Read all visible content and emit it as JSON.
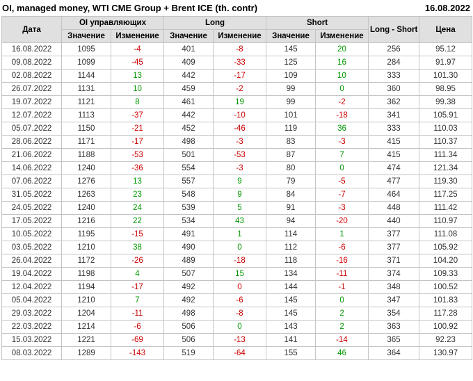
{
  "header": {
    "title": "OI, managed money, WTI CME Group + Brent ICE (th. contr)",
    "date": "16.08.2022"
  },
  "table": {
    "group_headers": {
      "date": "Дата",
      "oi": "OI управляющих",
      "long": "Long",
      "short": "Short",
      "long_short": "Long - Short",
      "price": "Цена"
    },
    "sub_headers": [
      "Значение",
      "Изменение",
      "Значение",
      "Изменение",
      "Значение",
      "Изменение"
    ]
  },
  "colors": {
    "positive": "#009900",
    "negative": "#cc0000",
    "header_bg": "#e0e0e0",
    "border": "#c4c4c4"
  },
  "chart_data": {
    "type": "table",
    "title": "OI, managed money, WTI CME Group + Brent ICE (th. contr)",
    "as_of_date": "16.08.2022",
    "columns": [
      "Дата",
      "OI управляющих Значение",
      "OI управляющих Изменение",
      "Long Значение",
      "Long Изменение",
      "Short Значение",
      "Short Изменение",
      "Long - Short",
      "Цена"
    ],
    "rows": [
      {
        "date": "16.08.2022",
        "oi_value": 1095,
        "oi_change": -4,
        "oi_change_color": "red",
        "long_value": 401,
        "long_change": -8,
        "long_change_color": "red",
        "short_value": 145,
        "short_change": 20,
        "short_change_color": "green",
        "long_short": 256,
        "price": "95.12"
      },
      {
        "date": "09.08.2022",
        "oi_value": 1099,
        "oi_change": -45,
        "oi_change_color": "red",
        "long_value": 409,
        "long_change": -33,
        "long_change_color": "red",
        "short_value": 125,
        "short_change": 16,
        "short_change_color": "green",
        "long_short": 284,
        "price": "91.97"
      },
      {
        "date": "02.08.2022",
        "oi_value": 1144,
        "oi_change": 13,
        "oi_change_color": "green",
        "long_value": 442,
        "long_change": -17,
        "long_change_color": "red",
        "short_value": 109,
        "short_change": 10,
        "short_change_color": "green",
        "long_short": 333,
        "price": "101.30"
      },
      {
        "date": "26.07.2022",
        "oi_value": 1131,
        "oi_change": 10,
        "oi_change_color": "green",
        "long_value": 459,
        "long_change": -2,
        "long_change_color": "red",
        "short_value": 99,
        "short_change": 0,
        "short_change_color": "green",
        "long_short": 360,
        "price": "98.95"
      },
      {
        "date": "19.07.2022",
        "oi_value": 1121,
        "oi_change": 8,
        "oi_change_color": "green",
        "long_value": 461,
        "long_change": 19,
        "long_change_color": "green",
        "short_value": 99,
        "short_change": -2,
        "short_change_color": "red",
        "long_short": 362,
        "price": "99.38"
      },
      {
        "date": "12.07.2022",
        "oi_value": 1113,
        "oi_change": -37,
        "oi_change_color": "red",
        "long_value": 442,
        "long_change": -10,
        "long_change_color": "red",
        "short_value": 101,
        "short_change": -18,
        "short_change_color": "red",
        "long_short": 341,
        "price": "105.91"
      },
      {
        "date": "05.07.2022",
        "oi_value": 1150,
        "oi_change": -21,
        "oi_change_color": "red",
        "long_value": 452,
        "long_change": -46,
        "long_change_color": "red",
        "short_value": 119,
        "short_change": 36,
        "short_change_color": "green",
        "long_short": 333,
        "price": "110.03"
      },
      {
        "date": "28.06.2022",
        "oi_value": 1171,
        "oi_change": -17,
        "oi_change_color": "red",
        "long_value": 498,
        "long_change": -3,
        "long_change_color": "red",
        "short_value": 83,
        "short_change": -3,
        "short_change_color": "red",
        "long_short": 415,
        "price": "110.37"
      },
      {
        "date": "21.06.2022",
        "oi_value": 1188,
        "oi_change": -53,
        "oi_change_color": "red",
        "long_value": 501,
        "long_change": -53,
        "long_change_color": "red",
        "short_value": 87,
        "short_change": 7,
        "short_change_color": "green",
        "long_short": 415,
        "price": "111.34"
      },
      {
        "date": "14.06.2022",
        "oi_value": 1240,
        "oi_change": -36,
        "oi_change_color": "red",
        "long_value": 554,
        "long_change": -3,
        "long_change_color": "red",
        "short_value": 80,
        "short_change": 0,
        "short_change_color": "green",
        "long_short": 474,
        "price": "121.34"
      },
      {
        "date": "07.06.2022",
        "oi_value": 1276,
        "oi_change": 13,
        "oi_change_color": "green",
        "long_value": 557,
        "long_change": 9,
        "long_change_color": "green",
        "short_value": 79,
        "short_change": -5,
        "short_change_color": "red",
        "long_short": 477,
        "price": "119.30"
      },
      {
        "date": "31.05.2022",
        "oi_value": 1263,
        "oi_change": 23,
        "oi_change_color": "green",
        "long_value": 548,
        "long_change": 9,
        "long_change_color": "green",
        "short_value": 84,
        "short_change": -7,
        "short_change_color": "red",
        "long_short": 464,
        "price": "117.25"
      },
      {
        "date": "24.05.2022",
        "oi_value": 1240,
        "oi_change": 24,
        "oi_change_color": "green",
        "long_value": 539,
        "long_change": 5,
        "long_change_color": "green",
        "short_value": 91,
        "short_change": -3,
        "short_change_color": "red",
        "long_short": 448,
        "price": "111.42"
      },
      {
        "date": "17.05.2022",
        "oi_value": 1216,
        "oi_change": 22,
        "oi_change_color": "green",
        "long_value": 534,
        "long_change": 43,
        "long_change_color": "green",
        "short_value": 94,
        "short_change": -20,
        "short_change_color": "red",
        "long_short": 440,
        "price": "110.97"
      },
      {
        "date": "10.05.2022",
        "oi_value": 1195,
        "oi_change": -15,
        "oi_change_color": "red",
        "long_value": 491,
        "long_change": 1,
        "long_change_color": "green",
        "short_value": 114,
        "short_change": 1,
        "short_change_color": "green",
        "long_short": 377,
        "price": "111.08"
      },
      {
        "date": "03.05.2022",
        "oi_value": 1210,
        "oi_change": 38,
        "oi_change_color": "green",
        "long_value": 490,
        "long_change": 0,
        "long_change_color": "green",
        "short_value": 112,
        "short_change": -6,
        "short_change_color": "red",
        "long_short": 377,
        "price": "105.92"
      },
      {
        "date": "26.04.2022",
        "oi_value": 1172,
        "oi_change": -26,
        "oi_change_color": "red",
        "long_value": 489,
        "long_change": -18,
        "long_change_color": "red",
        "short_value": 118,
        "short_change": -16,
        "short_change_color": "red",
        "long_short": 371,
        "price": "104.20"
      },
      {
        "date": "19.04.2022",
        "oi_value": 1198,
        "oi_change": 4,
        "oi_change_color": "green",
        "long_value": 507,
        "long_change": 15,
        "long_change_color": "green",
        "short_value": 134,
        "short_change": -11,
        "short_change_color": "red",
        "long_short": 374,
        "price": "109.33"
      },
      {
        "date": "12.04.2022",
        "oi_value": 1194,
        "oi_change": -17,
        "oi_change_color": "red",
        "long_value": 492,
        "long_change": 0,
        "long_change_color": "red",
        "short_value": 144,
        "short_change": -1,
        "short_change_color": "red",
        "long_short": 348,
        "price": "100.52"
      },
      {
        "date": "05.04.2022",
        "oi_value": 1210,
        "oi_change": 7,
        "oi_change_color": "green",
        "long_value": 492,
        "long_change": -6,
        "long_change_color": "red",
        "short_value": 145,
        "short_change": 0,
        "short_change_color": "green",
        "long_short": 347,
        "price": "101.83"
      },
      {
        "date": "29.03.2022",
        "oi_value": 1204,
        "oi_change": -11,
        "oi_change_color": "red",
        "long_value": 498,
        "long_change": -8,
        "long_change_color": "red",
        "short_value": 145,
        "short_change": 2,
        "short_change_color": "green",
        "long_short": 354,
        "price": "117.28"
      },
      {
        "date": "22.03.2022",
        "oi_value": 1214,
        "oi_change": -6,
        "oi_change_color": "red",
        "long_value": 506,
        "long_change": 0,
        "long_change_color": "green",
        "short_value": 143,
        "short_change": 2,
        "short_change_color": "green",
        "long_short": 363,
        "price": "100.92"
      },
      {
        "date": "15.03.2022",
        "oi_value": 1221,
        "oi_change": -69,
        "oi_change_color": "red",
        "long_value": 506,
        "long_change": -13,
        "long_change_color": "red",
        "short_value": 141,
        "short_change": -14,
        "short_change_color": "red",
        "long_short": 365,
        "price": "92.23"
      },
      {
        "date": "08.03.2022",
        "oi_value": 1289,
        "oi_change": -143,
        "oi_change_color": "red",
        "long_value": 519,
        "long_change": -64,
        "long_change_color": "red",
        "short_value": 155,
        "short_change": 46,
        "short_change_color": "green",
        "long_short": 364,
        "price": "130.97"
      }
    ]
  }
}
